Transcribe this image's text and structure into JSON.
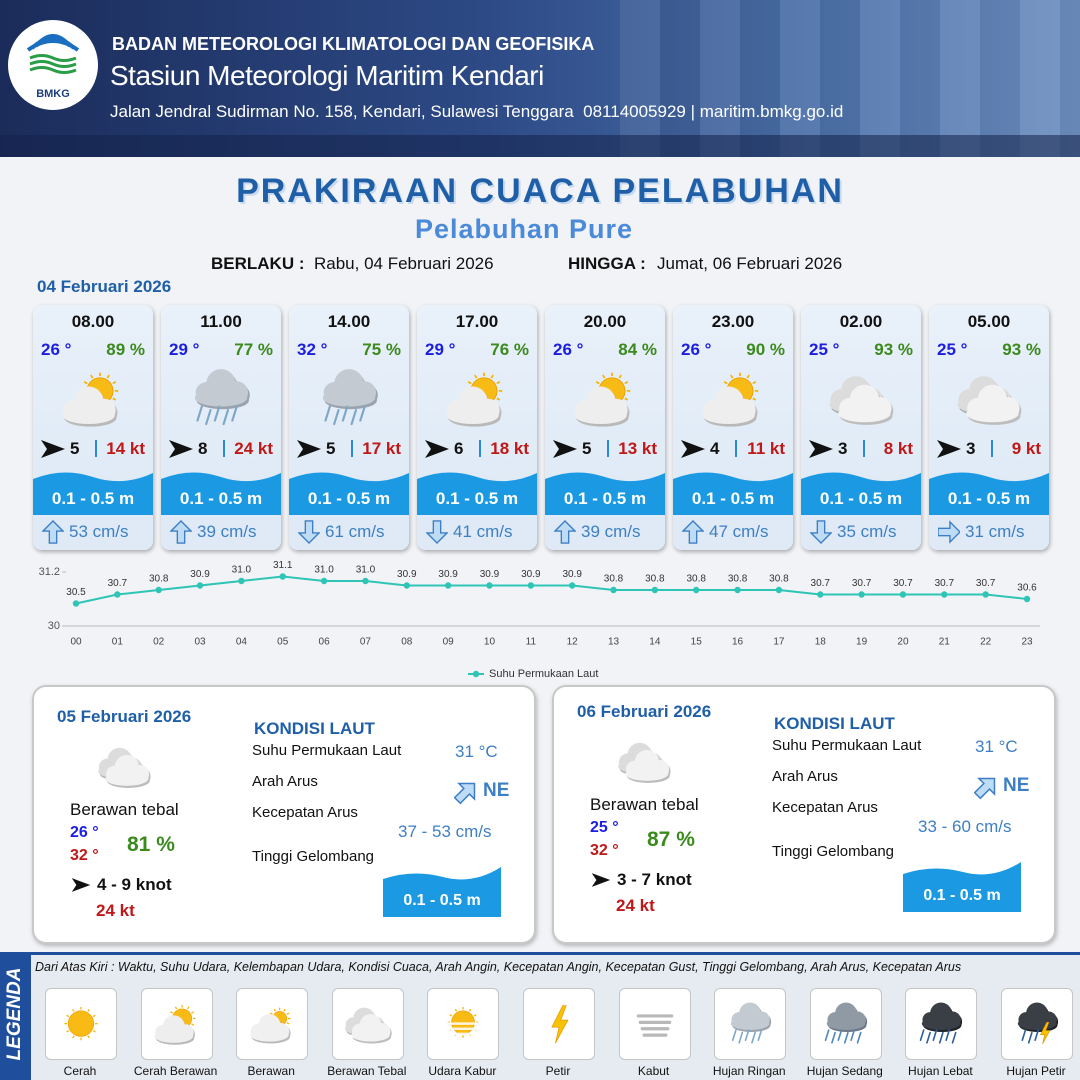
{
  "header": {
    "logo_text": "BMKG",
    "organization": "BADAN METEOROLOGI KLIMATOLOGI DAN GEOFISIKA",
    "station": "Stasiun Meteorologi Maritim Kendari",
    "address": "Jalan Jendral Sudirman No. 158, Kendari, Sulawesi Tenggara  08114005929 | maritim.bmkg.go.id"
  },
  "title": "PRAKIRAAN CUACA PELABUHAN",
  "subtitle": "Pelabuhan Pure",
  "validity": {
    "from_label": "BERLAKU :",
    "from": "Rabu, 04 Februari 2026",
    "to_label": "HINGGA :",
    "to": "Jumat, 06 Februari 2026"
  },
  "day1_date": "04 Februari 2026",
  "cards": [
    {
      "time": "08.00",
      "temp": "26 °",
      "humidity": "89 %",
      "condition": "Cerah Berawan",
      "wind": "5",
      "gust": "14 kt",
      "wave": "0.1 - 0.5 m",
      "current_dir": "up",
      "current": "53 cm/s"
    },
    {
      "time": "11.00",
      "temp": "29 °",
      "humidity": "77 %",
      "condition": "Hujan Ringan",
      "wind": "8",
      "gust": "24 kt",
      "wave": "0.1 - 0.5 m",
      "current_dir": "up",
      "current": "39 cm/s"
    },
    {
      "time": "14.00",
      "temp": "32 °",
      "humidity": "75 %",
      "condition": "Hujan Ringan",
      "wind": "5",
      "gust": "17 kt",
      "wave": "0.1 - 0.5 m",
      "current_dir": "down",
      "current": "61 cm/s"
    },
    {
      "time": "17.00",
      "temp": "29 °",
      "humidity": "76 %",
      "condition": "Cerah Berawan",
      "wind": "6",
      "gust": "18 kt",
      "wave": "0.1 - 0.5 m",
      "current_dir": "down",
      "current": "41 cm/s"
    },
    {
      "time": "20.00",
      "temp": "26 °",
      "humidity": "84 %",
      "condition": "Cerah Berawan",
      "wind": "5",
      "gust": "13 kt",
      "wave": "0.1 - 0.5 m",
      "current_dir": "up",
      "current": "39 cm/s"
    },
    {
      "time": "23.00",
      "temp": "26 °",
      "humidity": "90 %",
      "condition": "Cerah Berawan",
      "wind": "4",
      "gust": "11 kt",
      "wave": "0.1 - 0.5 m",
      "current_dir": "up",
      "current": "47 cm/s"
    },
    {
      "time": "02.00",
      "temp": "25 °",
      "humidity": "93 %",
      "condition": "Berawan Tebal",
      "wind": "3",
      "gust": "8 kt",
      "wave": "0.1 - 0.5 m",
      "current_dir": "down",
      "current": "35 cm/s"
    },
    {
      "time": "05.00",
      "temp": "25 °",
      "humidity": "93 %",
      "condition": "Berawan Tebal",
      "wind": "3",
      "gust": "9 kt",
      "wave": "0.1 - 0.5 m",
      "current_dir": "right",
      "current": "31 cm/s"
    }
  ],
  "chart_data": {
    "type": "line",
    "categories": [
      "00",
      "01",
      "02",
      "03",
      "04",
      "05",
      "06",
      "07",
      "08",
      "09",
      "10",
      "11",
      "12",
      "13",
      "14",
      "15",
      "16",
      "17",
      "18",
      "19",
      "20",
      "21",
      "22",
      "23"
    ],
    "series": [
      {
        "name": "Suhu Permukaan Laut",
        "color": "#2ec4b6",
        "values": [
          30.5,
          30.7,
          30.8,
          30.9,
          31.0,
          31.1,
          31.0,
          31.0,
          30.9,
          30.9,
          30.9,
          30.9,
          30.9,
          30.8,
          30.8,
          30.8,
          30.8,
          30.8,
          30.7,
          30.7,
          30.7,
          30.7,
          30.7,
          30.6
        ],
        "value_labels": [
          "30.5",
          "30.7",
          "30.8",
          "30.9",
          "31.0",
          "31.1",
          "31.0",
          "31.0",
          "30.9",
          "30.9",
          "30.9",
          "30.9",
          "30.9",
          "30.8",
          "30.8",
          "30.8",
          "30.8",
          "30.8",
          "30.7",
          "30.7",
          "30.7",
          "30.7",
          "30.7",
          "30.6"
        ]
      }
    ],
    "ylim": [
      30,
      31.2
    ],
    "yticks": [
      30,
      31.2
    ],
    "legend": "bottom"
  },
  "panels": [
    {
      "date": "05 Februari 2026",
      "condition": "Berawan tebal",
      "temp_min": "26 °",
      "temp_max": "32 °",
      "humidity": "81 %",
      "wind": "4 - 9 knot",
      "gust": "24 kt",
      "sea_title": "KONDISI LAUT",
      "sea_labels": [
        "Suhu Permukaan Laut",
        "Arah Arus",
        "Kecepatan Arus",
        "Tinggi Gelombang"
      ],
      "sst": "31 °C",
      "current_dir": "NE",
      "current_speed": "37 - 53 cm/s",
      "wave": "0.1 - 0.5 m"
    },
    {
      "date": "06 Februari 2026",
      "condition": "Berawan tebal",
      "temp_min": "25 °",
      "temp_max": "32 °",
      "humidity": "87 %",
      "wind": "3 - 7 knot",
      "gust": "24 kt",
      "sea_title": "KONDISI LAUT",
      "sea_labels": [
        "Suhu Permukaan Laut",
        "Arah Arus",
        "Kecepatan Arus",
        "Tinggi Gelombang"
      ],
      "sst": "31 °C",
      "current_dir": "NE",
      "current_speed": "33 - 60 cm/s",
      "wave": "0.1 - 0.5 m"
    }
  ],
  "legend": {
    "title": "LEGENDA",
    "description": "Dari Atas Kiri : Waktu, Suhu Udara, Kelembapan Udara, Kondisi Cuaca, Arah Angin, Kecepatan Angin, Kecepatan Gust, Tinggi Gelombang, Arah Arus, Kecepatan Arus",
    "items": [
      "Cerah",
      "Cerah Berawan",
      "Berawan",
      "Berawan Tebal",
      "Udara Kabur",
      "Petir",
      "Kabut",
      "Hujan Ringan",
      "Hujan Sedang",
      "Hujan Lebat",
      "Hujan Petir"
    ]
  }
}
